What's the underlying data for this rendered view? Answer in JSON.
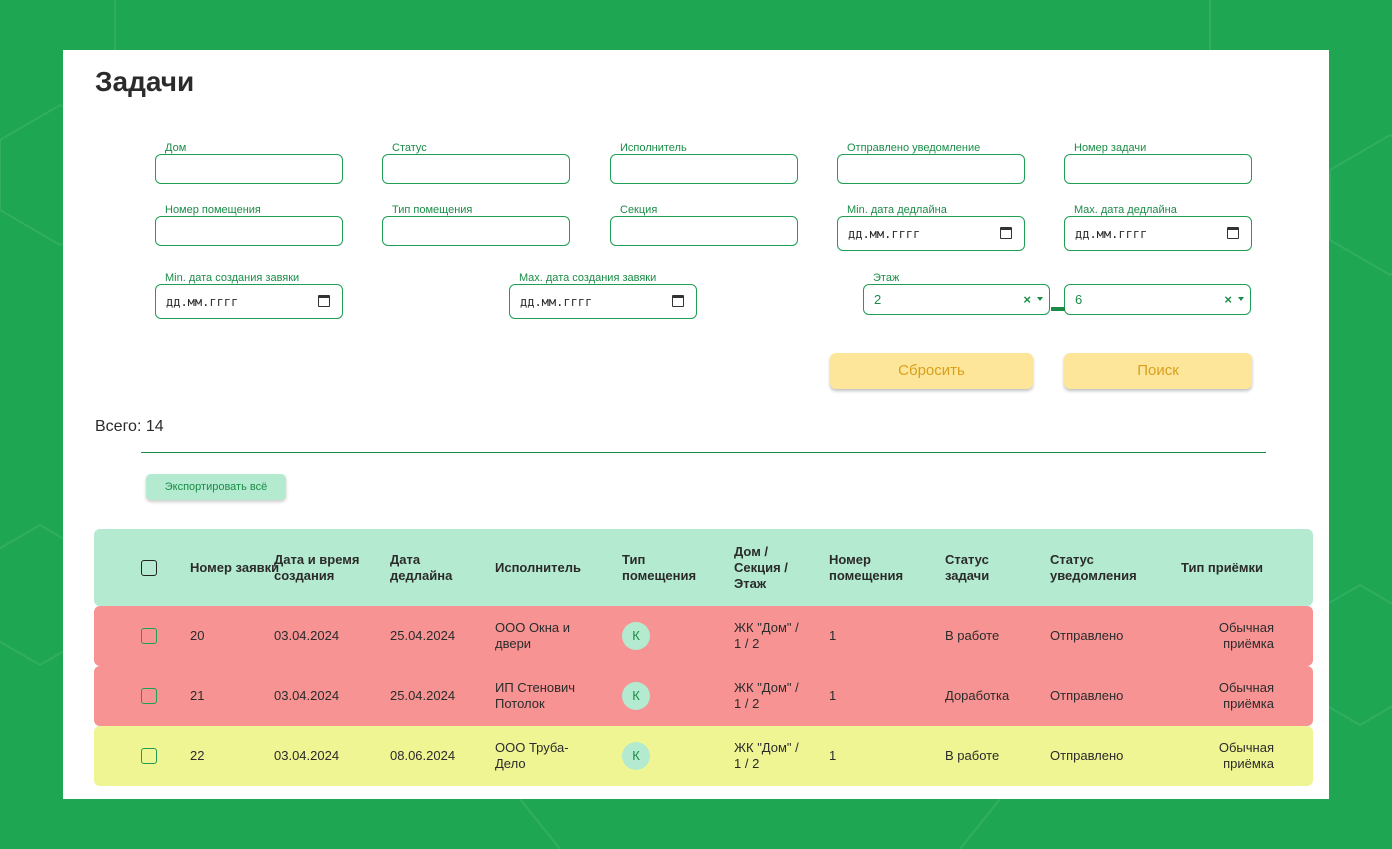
{
  "page_title": "Задачи",
  "filters": {
    "house_label": "Дом",
    "status_label": "Статус",
    "executor_label": "Исполнитель",
    "notification_label": "Отправлено уведомление",
    "task_number_label": "Номер задачи",
    "room_number_label": "Номер помещения",
    "room_type_label": "Тип помещения",
    "section_label": "Секция",
    "min_deadline_label": "Min. дата дедлайна",
    "max_deadline_label": "Max. дата дедлайна",
    "min_created_label": "Min. дата создания завяки",
    "max_created_label": "Max. дата создания завяки",
    "floor_label": "Этаж",
    "date_placeholder": "дд.мм.гггг",
    "floor_from": "2",
    "floor_to": "6",
    "clear_symbol": "×"
  },
  "buttons": {
    "reset": "Сбросить",
    "search": "Поиск",
    "export": "Экспортировать всё"
  },
  "total_text": "Всего: 14",
  "table": {
    "headers": {
      "number": "Номер заявки",
      "created": "Дата и время создания",
      "deadline": "Дата дедлайна",
      "executor": "Исполнитель",
      "room_type": "Тип помещения",
      "house": "Дом / Секция / Этаж",
      "room_number": "Номер помещения",
      "task_status": "Статус задачи",
      "notify_status": "Статус уведомления",
      "acceptance": "Тип приёмки"
    },
    "rows": [
      {
        "color": "#f79393",
        "number": "20",
        "created": "03.04.2024",
        "deadline": "25.04.2024",
        "executor": "ООО Окна и двери",
        "room_type": "К",
        "house": "ЖК \"Дом\" / 1 / 2",
        "room_number": "1",
        "task_status": "В работе",
        "notify_status": "Отправлено",
        "acceptance": "Обычная приёмка"
      },
      {
        "color": "#f79393",
        "number": "21",
        "created": "03.04.2024",
        "deadline": "25.04.2024",
        "executor": "ИП Стенович Потолок",
        "room_type": "К",
        "house": "ЖК \"Дом\" / 1 / 2",
        "room_number": "1",
        "task_status": "Доработка",
        "notify_status": "Отправлено",
        "acceptance": "Обычная приёмка"
      },
      {
        "color": "#eff592",
        "number": "22",
        "created": "03.04.2024",
        "deadline": "08.06.2024",
        "executor": "ООО Труба-Дело",
        "room_type": "К",
        "house": "ЖК \"Дом\" / 1 / 2",
        "room_number": "1",
        "task_status": "В работе",
        "notify_status": "Отправлено",
        "acceptance": "Обычная приёмка"
      }
    ]
  }
}
